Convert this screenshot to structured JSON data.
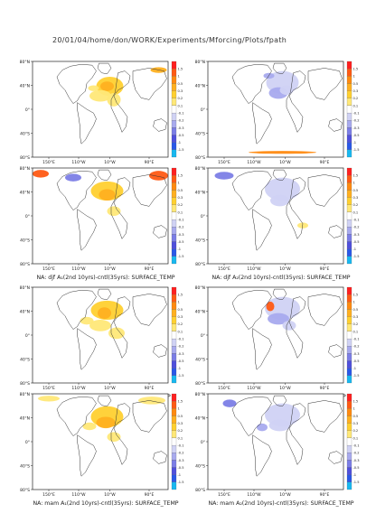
{
  "header": {
    "path": "20/01/04/home/don/WORK/Experiments/Mforcing/Plots/fpath"
  },
  "axis": {
    "lat_labels": [
      "80°N",
      "40°N",
      "0°",
      "40°S",
      "80°S"
    ],
    "lon_labels": [
      "150°E",
      "110°W",
      "10°W",
      "90°E"
    ]
  },
  "colorbar": {
    "labels": [
      "1.5",
      "1",
      "0.5",
      "0.3",
      "0.2",
      "0.1",
      "-0.1",
      "-0.2",
      "-0.3",
      "-0.5",
      "-1",
      "-1.5"
    ],
    "colors": [
      "#ff2020",
      "#ff5a14",
      "#ff8a10",
      "#ffb020",
      "#ffd030",
      "#ffe878",
      "#ffffff",
      "#d0d2f4",
      "#a8aaee",
      "#7c7ee6",
      "#5050dc",
      "#2a58e8",
      "#18b8f0"
    ]
  },
  "panels": [
    {
      "caption": "NA: djf A₁(9yrs)-cntl(35yrs): SURFACE_TEMP",
      "mode": "warm1"
    },
    {
      "caption": "NA: djf A₂(9yrs)-cntl(35yrs): SURFACE_TEMP",
      "mode": "cool1"
    },
    {
      "caption": "NA: djf A₁(2nd 10yrs)-cntl(35yrs): SURFACE_TEMP",
      "mode": "warm2"
    },
    {
      "caption": "NA: djf A₂(2nd 10yrs)-cntl(35yrs): SURFACE_TEMP",
      "mode": "cool2"
    },
    {
      "caption": "NA: mam A₁(9yrs)-cntl(35yrs): SURFACE_TEMP",
      "mode": "warm3"
    },
    {
      "caption": "NA: mam A₂(9yrs)-cntl(35yrs): SURFACE_TEMP",
      "mode": "cool3"
    },
    {
      "caption": "NA: mam A₁(2nd 10yrs)-cntl(35yrs): SURFACE_TEMP",
      "mode": "warm4"
    },
    {
      "caption": "NA: mam A₂(2nd 10yrs)-cntl(35yrs): SURFACE_TEMP",
      "mode": "cool4"
    }
  ]
}
